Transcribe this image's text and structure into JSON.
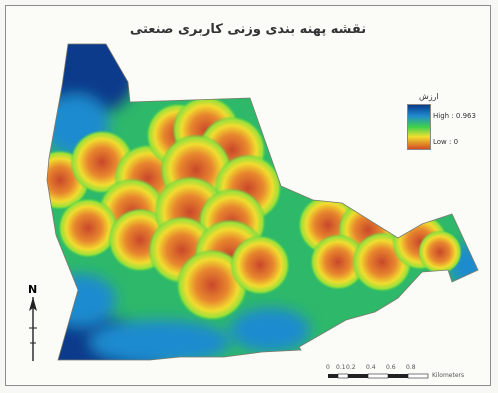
{
  "map": {
    "title": "نقشه پهنه بندی وزنی کاربری صنعتی",
    "legend": {
      "title": "ارزش",
      "high_label": "High : 0.963",
      "low_label": "Low : 0"
    },
    "north_label": "N",
    "scale": {
      "tick_labels": [
        "0",
        "0.1",
        "0.2",
        "0.4",
        "0.6",
        "0.8"
      ],
      "unit": "Kilometers"
    },
    "colors": {
      "high": "#0b3a8c",
      "mid_high": "#1f8bcf",
      "mid": "#3fd14a",
      "mid_low": "#f0e030",
      "low": "#d34c26"
    }
  }
}
